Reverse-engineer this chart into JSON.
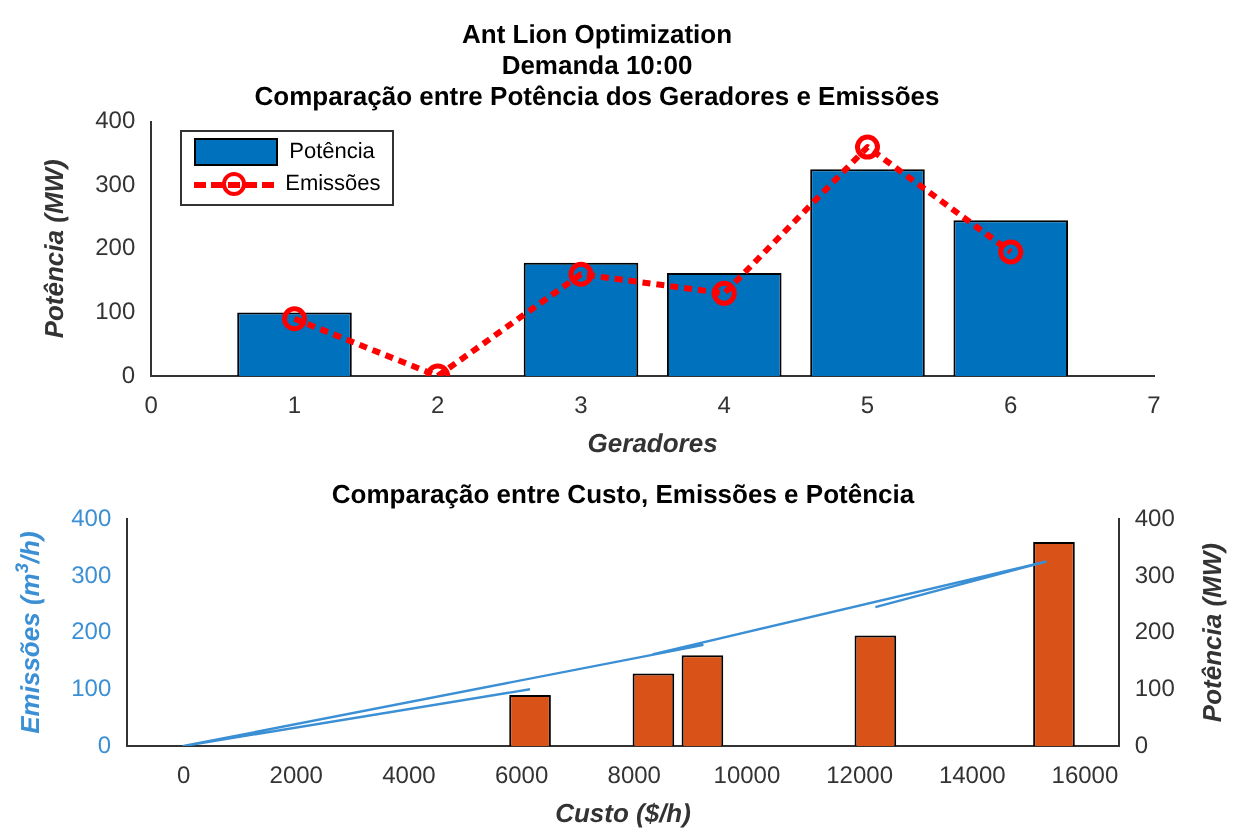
{
  "chart_data": [
    {
      "type": "bar",
      "title": "Ant Lion Optimization\nDemanda 10:00\nComparação entre Potência dos Geradores e Emissões",
      "xlabel": "Geradores",
      "ylabel": "Potência (MW)",
      "x": [
        1,
        2,
        3,
        4,
        5,
        6
      ],
      "xlim": [
        0,
        7
      ],
      "xticks": [
        0,
        1,
        2,
        3,
        4,
        5,
        6,
        7
      ],
      "ylim": [
        0,
        400
      ],
      "yticks": [
        0,
        100,
        200,
        300,
        400
      ],
      "legend": "top left",
      "series": [
        {
          "name": "Potência",
          "color": "#0072bd",
          "values": [
            100,
            0,
            178,
            162,
            325,
            245
          ]
        },
        {
          "name": "Emissões",
          "type": "line",
          "color": "#ff0000",
          "marker": "circle",
          "line_style": "dashed",
          "values": [
            90,
            0,
            160,
            130,
            360,
            195
          ]
        }
      ]
    },
    {
      "type": "bar",
      "title": "Comparação entre Custo, Emissões e Potência",
      "xlabel": "Custo ($/h)",
      "ylabel": "Emissões (m$^{3}$/h)",
      "y2label": "Potência (MW)",
      "xlim": [
        -1000,
        16600
      ],
      "xticks": [
        0,
        2000,
        4000,
        6000,
        8000,
        10000,
        12000,
        14000,
        16000
      ],
      "ylim": [
        0,
        400
      ],
      "yticks": [
        0,
        100,
        200,
        300,
        400
      ],
      "y2lim": [
        0,
        400
      ],
      "y2ticks": [
        0,
        100,
        200,
        300,
        400
      ],
      "series": [
        {
          "color": "#d95319",
          "x": [
            0,
            6150,
            8340,
            9210,
            12280,
            15450
          ],
          "values": [
            0,
            90,
            128,
            160,
            195,
            360
          ]
        },
        {
          "type": "line",
          "axis": "y2",
          "color": "#3b8fd4",
          "x": [
            6150,
            0,
            9210,
            8340,
            15300,
            12280
          ],
          "values": [
            100,
            0,
            178,
            162,
            325,
            245
          ]
        }
      ]
    }
  ]
}
